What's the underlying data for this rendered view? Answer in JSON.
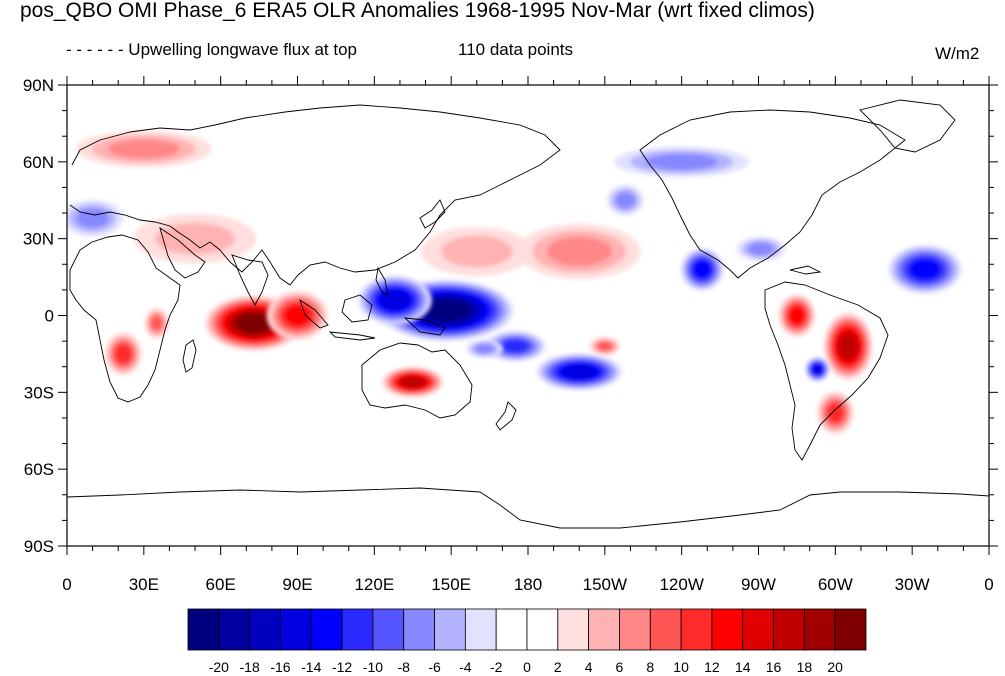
{
  "title": "pos_QBO OMI Phase_6 ERA5 OLR Anomalies 1968-1995 Nov-Mar (wrt fixed climos)",
  "subtitle_left": "- - - - - - Upwelling longwave flux at top",
  "subtitle_center": "110 data points",
  "units": "W/m2",
  "axes": {
    "lat_labels": [
      "90N",
      "60N",
      "30N",
      "0",
      "30S",
      "60S",
      "90S"
    ],
    "lon_labels": [
      "0",
      "30E",
      "60E",
      "90E",
      "120E",
      "150E",
      "180",
      "150W",
      "120W",
      "90W",
      "60W",
      "30W",
      "0"
    ]
  },
  "colorbar": {
    "labels": [
      "-20",
      "-18",
      "-16",
      "-14",
      "-12",
      "-10",
      "-8",
      "-6",
      "-4",
      "-2",
      "0",
      "2",
      "4",
      "6",
      "8",
      "10",
      "12",
      "14",
      "16",
      "18",
      "20"
    ],
    "colors": [
      "#00007f",
      "#0000a0",
      "#0000c0",
      "#0000e0",
      "#0000ff",
      "#2a2aff",
      "#5555ff",
      "#8787ff",
      "#b2b2ff",
      "#e2e2ff",
      "#ffffff",
      "#ffffff",
      "#ffdede",
      "#ffb2b2",
      "#ff8787",
      "#ff5555",
      "#ff2a2a",
      "#ff0000",
      "#e00000",
      "#c00000",
      "#a00000",
      "#7f0000"
    ]
  },
  "map_data": {
    "field": "OLR anomaly",
    "blobs": [
      {
        "lon": 148,
        "lat": 2,
        "rx": 22,
        "ry": 10,
        "value": -20
      },
      {
        "lon": 128,
        "lat": 6,
        "rx": 12,
        "ry": 8,
        "value": -14
      },
      {
        "lon": 200,
        "lat": -22,
        "rx": 14,
        "ry": 6,
        "value": -14
      },
      {
        "lon": 175,
        "lat": -12,
        "rx": 10,
        "ry": 5,
        "value": -10
      },
      {
        "lon": 73,
        "lat": -3,
        "rx": 16,
        "ry": 9,
        "value": 20
      },
      {
        "lon": 90,
        "lat": 0,
        "rx": 10,
        "ry": 8,
        "value": 12
      },
      {
        "lon": 135,
        "lat": -26,
        "rx": 10,
        "ry": 5,
        "value": 16
      },
      {
        "lon": 22,
        "lat": -15,
        "rx": 6,
        "ry": 7,
        "value": 10
      },
      {
        "lon": 35,
        "lat": -3,
        "rx": 4,
        "ry": 5,
        "value": 8
      },
      {
        "lon": 305,
        "lat": -12,
        "rx": 8,
        "ry": 11,
        "value": 16
      },
      {
        "lon": 285,
        "lat": 0,
        "rx": 6,
        "ry": 7,
        "value": 12
      },
      {
        "lon": 293,
        "lat": -21,
        "rx": 4,
        "ry": 4,
        "value": -14
      },
      {
        "lon": 300,
        "lat": -38,
        "rx": 6,
        "ry": 7,
        "value": 10
      },
      {
        "lon": 335,
        "lat": 18,
        "rx": 12,
        "ry": 8,
        "value": -12
      },
      {
        "lon": 248,
        "lat": 18,
        "rx": 7,
        "ry": 7,
        "value": -12
      },
      {
        "lon": 271,
        "lat": 26,
        "rx": 8,
        "ry": 4,
        "value": -6
      },
      {
        "lon": 200,
        "lat": 25,
        "rx": 20,
        "ry": 9,
        "value": 6
      },
      {
        "lon": 30,
        "lat": 65,
        "rx": 22,
        "ry": 6,
        "value": 6
      },
      {
        "lon": 240,
        "lat": 60,
        "rx": 22,
        "ry": 5,
        "value": -6
      },
      {
        "lon": 218,
        "lat": 45,
        "rx": 6,
        "ry": 5,
        "value": -6
      },
      {
        "lon": 10,
        "lat": 38,
        "rx": 10,
        "ry": 6,
        "value": -6
      },
      {
        "lon": 160,
        "lat": 25,
        "rx": 18,
        "ry": 8,
        "value": 4
      },
      {
        "lon": 50,
        "lat": 30,
        "rx": 20,
        "ry": 8,
        "value": 4
      },
      {
        "lon": 163,
        "lat": -13,
        "rx": 6,
        "ry": 3,
        "value": -6
      },
      {
        "lon": 210,
        "lat": -12,
        "rx": 5,
        "ry": 3,
        "value": 8
      }
    ]
  }
}
